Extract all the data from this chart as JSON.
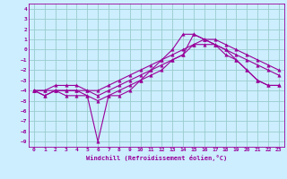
{
  "xlabel": "Windchill (Refroidissement éolien,°C)",
  "background_color": "#cceeff",
  "grid_color": "#99cccc",
  "line_color": "#990099",
  "xlim": [
    -0.5,
    23.5
  ],
  "ylim": [
    -9.5,
    4.5
  ],
  "xticks": [
    0,
    1,
    2,
    3,
    4,
    5,
    6,
    7,
    8,
    9,
    10,
    11,
    12,
    13,
    14,
    15,
    16,
    17,
    18,
    19,
    20,
    21,
    22,
    23
  ],
  "yticks": [
    4,
    3,
    2,
    1,
    0,
    -1,
    -2,
    -3,
    -4,
    -5,
    -6,
    -7,
    -8,
    -9
  ],
  "series1_x": [
    0,
    1,
    2,
    3,
    4,
    5,
    6,
    7,
    8,
    9,
    10,
    11,
    12,
    13,
    14,
    15,
    16,
    17,
    18,
    19,
    20,
    21,
    22,
    23
  ],
  "series1_y": [
    -4,
    -4.5,
    -4,
    -4.5,
    -4.5,
    -4.5,
    -9,
    -4.5,
    -4.5,
    -4,
    -3,
    -2,
    -1,
    0,
    1.5,
    1.5,
    1,
    0.5,
    0,
    -1,
    -2,
    -3,
    -3.5,
    -3.5
  ],
  "series2_x": [
    0,
    1,
    2,
    3,
    4,
    5,
    6,
    7,
    8,
    9,
    10,
    11,
    12,
    13,
    14,
    15,
    16,
    17,
    18,
    19,
    20,
    21,
    22,
    23
  ],
  "series2_y": [
    -4,
    -4.5,
    -4,
    -4,
    -4,
    -4.5,
    -5,
    -4.5,
    -4,
    -3.5,
    -3,
    -2.5,
    -2,
    -1,
    -0.5,
    1.5,
    1,
    0.5,
    -0.5,
    -1,
    -2,
    -3,
    -3.5,
    -3.5
  ],
  "series3_x": [
    0,
    1,
    2,
    3,
    4,
    5,
    6,
    7,
    8,
    9,
    10,
    11,
    12,
    13,
    14,
    15,
    16,
    17,
    18,
    19,
    20,
    21,
    22,
    23
  ],
  "series3_y": [
    -4,
    -4,
    -3.5,
    -3.5,
    -3.5,
    -4,
    -4.5,
    -4,
    -3.5,
    -3,
    -2.5,
    -2,
    -1.5,
    -1,
    -0.5,
    0.5,
    0.5,
    0.5,
    0,
    -0.5,
    -1,
    -1.5,
    -2,
    -2.5
  ],
  "series4_x": [
    0,
    1,
    2,
    3,
    4,
    5,
    6,
    7,
    8,
    9,
    10,
    11,
    12,
    13,
    14,
    15,
    16,
    17,
    18,
    19,
    20,
    21,
    22,
    23
  ],
  "series4_y": [
    -4,
    -4,
    -4,
    -4,
    -4,
    -4,
    -4,
    -3.5,
    -3,
    -2.5,
    -2,
    -1.5,
    -1,
    -0.5,
    0,
    0.5,
    1,
    1,
    0.5,
    0,
    -0.5,
    -1,
    -1.5,
    -2
  ]
}
